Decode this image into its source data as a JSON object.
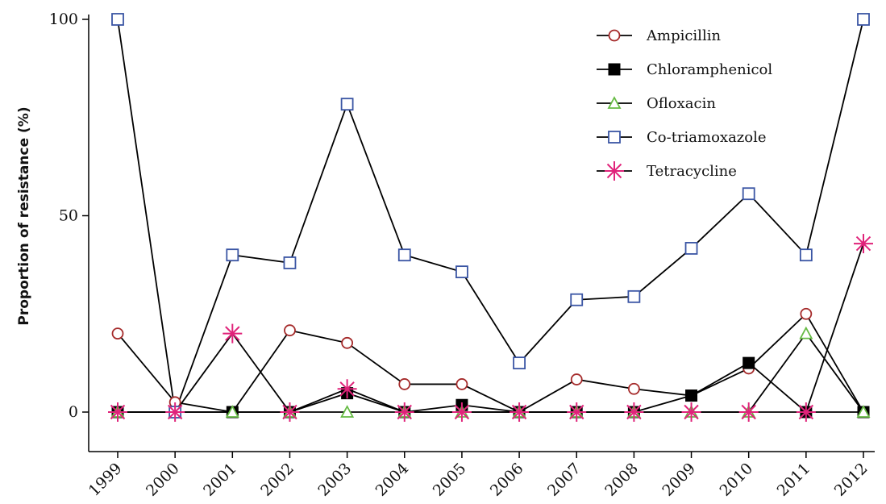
{
  "chart_data": {
    "type": "line",
    "title": "",
    "xlabel": "",
    "ylabel": "Proportion of resistance (%)",
    "ylim": [
      0,
      100
    ],
    "yticks": [
      0,
      50,
      100
    ],
    "grid": false,
    "legend_position": "top-right",
    "x": [
      "1999",
      "2000",
      "2001",
      "2002",
      "2003",
      "2004",
      "2005",
      "2006",
      "2007",
      "2008",
      "2009",
      "2010",
      "2011",
      "2012"
    ],
    "series": [
      {
        "name": "Ampicillin",
        "marker": "open-circle",
        "color": "#a52a2a",
        "values": [
          20,
          2.5,
          0,
          20.8,
          17.6,
          7.1,
          7.1,
          0,
          8.3,
          5.9,
          4.2,
          11.1,
          25,
          0
        ]
      },
      {
        "name": "Chloramphenicol",
        "marker": "filled-square",
        "color": "#000000",
        "values": [
          0,
          0,
          0,
          0,
          4.8,
          0,
          1.8,
          0,
          0,
          0,
          4.2,
          12.5,
          0,
          0
        ]
      },
      {
        "name": "Ofloxacin",
        "marker": "open-triangle",
        "color": "#66bb44",
        "values": [
          0,
          0,
          0,
          0,
          0,
          0,
          0,
          0,
          0,
          0,
          0,
          0,
          20,
          0
        ]
      },
      {
        "name": "Co-triamoxazole",
        "marker": "open-square",
        "color": "#3a55a4",
        "values": [
          100,
          0,
          40,
          38,
          78.4,
          40,
          35.7,
          12.5,
          28.6,
          29.4,
          41.7,
          55.6,
          40,
          100
        ]
      },
      {
        "name": "Tetracycline",
        "marker": "asterisk",
        "color": "#e0237a",
        "values": [
          0,
          0,
          20,
          0,
          5.9,
          0,
          0,
          0,
          0,
          0,
          0,
          0,
          0,
          42.9
        ]
      }
    ]
  }
}
